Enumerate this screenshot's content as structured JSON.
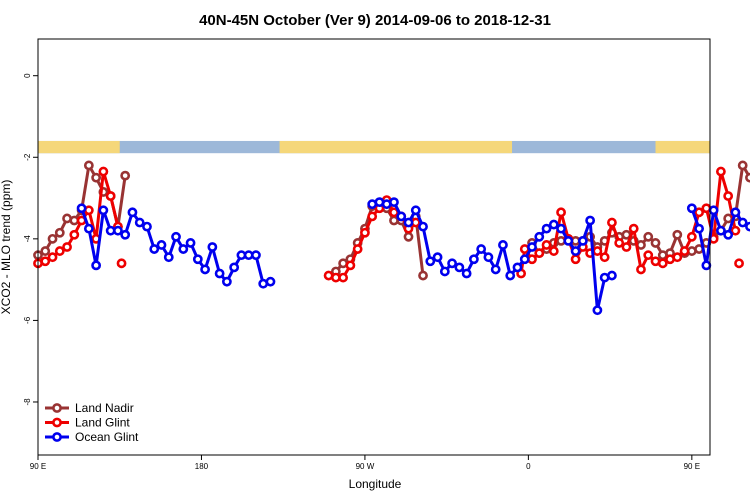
{
  "chart_data": {
    "type": "line",
    "title": "40N-45N October (Ver 9)   2014-09-06 to 2018-12-31",
    "xlabel": "Longitude",
    "ylabel": "XCO2 - MLO trend (ppm)",
    "xlim": [
      90,
      460
    ],
    "ylim": [
      -9.3,
      0.9
    ],
    "x_ticks": [
      {
        "value": 90,
        "label": "90 E"
      },
      {
        "value": 180,
        "label": "180"
      },
      {
        "value": 270,
        "label": "90 W"
      },
      {
        "value": 360,
        "label": "0"
      },
      {
        "value": 450,
        "label": "90 E"
      },
      {
        "value": 540,
        "label": "180"
      }
    ],
    "y_ticks": [
      {
        "value": 0,
        "label": "0"
      },
      {
        "value": -2,
        "label": "-2"
      },
      {
        "value": -4,
        "label": "-4"
      },
      {
        "value": -6,
        "label": "-6"
      },
      {
        "value": -8,
        "label": "-8"
      }
    ],
    "landmask": {
      "y_range": [
        -1.6,
        -1.9
      ],
      "ocean_color": "#9db8d9",
      "land_color": "#f5d77a",
      "land_segments": [
        [
          90,
          135
        ],
        [
          223,
          351
        ],
        [
          430,
          489
        ]
      ]
    },
    "legend_position": "bottom-left",
    "series": [
      {
        "name": "Land Nadir",
        "color": "#993333",
        "segments": [
          [
            [
              90,
              -4.4
            ],
            [
              94,
              -4.3
            ],
            [
              98,
              -4.0
            ],
            [
              102,
              -3.85
            ],
            [
              106,
              -3.5
            ],
            [
              110,
              -3.55
            ],
            [
              114,
              -3.3
            ],
            [
              118,
              -2.2
            ],
            [
              122,
              -2.5
            ],
            [
              126,
              -2.85
            ],
            [
              130,
              -2.95
            ],
            [
              134,
              -3.7
            ],
            [
              138,
              -2.45
            ]
          ],
          [
            [
              254,
              -4.8
            ],
            [
              258,
              -4.6
            ],
            [
              262,
              -4.5
            ],
            [
              266,
              -4.1
            ],
            [
              270,
              -3.75
            ],
            [
              274,
              -3.2
            ],
            [
              278,
              -3.15
            ],
            [
              282,
              -3.25
            ],
            [
              286,
              -3.55
            ],
            [
              290,
              -3.55
            ],
            [
              294,
              -3.95
            ],
            [
              298,
              -3.45
            ],
            [
              302,
              -4.9
            ]
          ],
          [
            [
              362,
              -4.1
            ],
            [
              366,
              -4.35
            ],
            [
              370,
              -4.25
            ],
            [
              374,
              -4.1
            ],
            [
              378,
              -4.05
            ],
            [
              382,
              -4.0
            ],
            [
              386,
              -4.05
            ],
            [
              390,
              -4.05
            ],
            [
              394,
              -3.95
            ],
            [
              398,
              -4.2
            ],
            [
              402,
              -4.05
            ],
            [
              406,
              -3.85
            ],
            [
              410,
              -3.95
            ],
            [
              414,
              -3.9
            ],
            [
              418,
              -4.05
            ],
            [
              422,
              -4.15
            ],
            [
              426,
              -3.95
            ],
            [
              430,
              -4.1
            ],
            [
              434,
              -4.4
            ],
            [
              438,
              -4.35
            ],
            [
              442,
              -3.9
            ],
            [
              446,
              -4.35
            ],
            [
              450,
              -4.3
            ],
            [
              454,
              -4.25
            ],
            [
              458,
              -4.1
            ],
            [
              462,
              -3.95
            ],
            [
              466,
              -3.8
            ],
            [
              470,
              -3.5
            ],
            [
              474,
              -3.45
            ],
            [
              478,
              -2.2
            ],
            [
              482,
              -2.5
            ],
            [
              486,
              -2.85
            ],
            [
              490,
              -2.95
            ],
            [
              494,
              -3.65
            ],
            [
              498,
              -2.45
            ]
          ]
        ]
      },
      {
        "name": "Land Glint",
        "color": "#ee0000",
        "segments": [
          [
            [
              90,
              -4.6
            ],
            [
              94,
              -4.55
            ],
            [
              98,
              -4.45
            ],
            [
              102,
              -4.3
            ],
            [
              106,
              -4.2
            ],
            [
              110,
              -3.9
            ],
            [
              114,
              -3.55
            ],
            [
              118,
              -3.3
            ],
            [
              122,
              -4.0
            ],
            [
              126,
              -2.35
            ],
            [
              130,
              -2.95
            ],
            [
              134,
              -3.7
            ]
          ],
          [
            [
              136,
              -4.6
            ]
          ],
          [
            [
              250,
              -4.9
            ],
            [
              254,
              -4.95
            ],
            [
              258,
              -4.95
            ],
            [
              262,
              -4.65
            ],
            [
              266,
              -4.25
            ],
            [
              270,
              -3.85
            ],
            [
              274,
              -3.45
            ],
            [
              278,
              -3.25
            ],
            [
              282,
              -3.05
            ],
            [
              286,
              -3.35
            ],
            [
              290,
              -3.45
            ],
            [
              294,
              -3.75
            ],
            [
              298,
              -3.6
            ]
          ],
          [
            [
              356,
              -4.85
            ],
            [
              358,
              -4.25
            ],
            [
              362,
              -4.5
            ],
            [
              366,
              -4.35
            ],
            [
              370,
              -4.15
            ],
            [
              374,
              -4.3
            ],
            [
              378,
              -3.35
            ],
            [
              382,
              -4.0
            ],
            [
              386,
              -4.5
            ],
            [
              390,
              -4.2
            ],
            [
              394,
              -4.35
            ],
            [
              398,
              -4.3
            ],
            [
              402,
              -4.45
            ],
            [
              406,
              -3.6
            ],
            [
              410,
              -4.1
            ],
            [
              414,
              -4.2
            ],
            [
              418,
              -3.75
            ],
            [
              422,
              -4.75
            ],
            [
              426,
              -4.4
            ],
            [
              430,
              -4.55
            ],
            [
              434,
              -4.6
            ],
            [
              438,
              -4.5
            ],
            [
              442,
              -4.45
            ],
            [
              446,
              -4.3
            ],
            [
              450,
              -3.95
            ],
            [
              454,
              -3.35
            ],
            [
              458,
              -3.25
            ],
            [
              462,
              -4.0
            ],
            [
              466,
              -2.35
            ],
            [
              470,
              -2.95
            ],
            [
              474,
              -3.8
            ]
          ],
          [
            [
              476,
              -4.6
            ]
          ]
        ]
      },
      {
        "name": "Ocean Glint",
        "color": "#0000ee",
        "segments": [
          [
            [
              114,
              -3.25
            ],
            [
              118,
              -3.75
            ],
            [
              122,
              -4.65
            ],
            [
              126,
              -3.3
            ],
            [
              130,
              -3.8
            ],
            [
              134,
              -3.8
            ],
            [
              138,
              -3.9
            ],
            [
              142,
              -3.35
            ],
            [
              146,
              -3.6
            ],
            [
              150,
              -3.7
            ],
            [
              154,
              -4.25
            ],
            [
              158,
              -4.15
            ],
            [
              162,
              -4.45
            ],
            [
              166,
              -3.95
            ],
            [
              170,
              -4.25
            ],
            [
              174,
              -4.1
            ],
            [
              178,
              -4.5
            ],
            [
              182,
              -4.75
            ],
            [
              186,
              -4.2
            ],
            [
              190,
              -4.85
            ],
            [
              194,
              -5.05
            ],
            [
              198,
              -4.7
            ],
            [
              202,
              -4.4
            ],
            [
              206,
              -4.4
            ],
            [
              210,
              -4.4
            ],
            [
              214,
              -5.1
            ],
            [
              218,
              -5.05
            ]
          ],
          [
            [
              274,
              -3.15
            ],
            [
              278,
              -3.1
            ],
            [
              282,
              -3.15
            ],
            [
              286,
              -3.1
            ],
            [
              290,
              -3.45
            ],
            [
              294,
              -3.6
            ],
            [
              298,
              -3.3
            ],
            [
              302,
              -3.7
            ],
            [
              306,
              -4.55
            ],
            [
              310,
              -4.45
            ],
            [
              314,
              -4.8
            ],
            [
              318,
              -4.6
            ],
            [
              322,
              -4.7
            ],
            [
              326,
              -4.85
            ],
            [
              330,
              -4.5
            ],
            [
              334,
              -4.25
            ],
            [
              338,
              -4.45
            ],
            [
              342,
              -4.75
            ],
            [
              346,
              -4.15
            ],
            [
              350,
              -4.9
            ],
            [
              354,
              -4.7
            ],
            [
              358,
              -4.5
            ],
            [
              362,
              -4.2
            ],
            [
              366,
              -3.95
            ],
            [
              370,
              -3.75
            ],
            [
              374,
              -3.65
            ],
            [
              378,
              -3.75
            ],
            [
              382,
              -4.05
            ],
            [
              386,
              -4.3
            ],
            [
              390,
              -4.05
            ],
            [
              394,
              -3.55
            ],
            [
              398,
              -5.75
            ],
            [
              402,
              -4.95
            ],
            [
              406,
              -4.9
            ]
          ],
          [
            [
              450,
              -3.25
            ],
            [
              454,
              -3.75
            ],
            [
              458,
              -4.65
            ],
            [
              462,
              -3.3
            ],
            [
              466,
              -3.8
            ],
            [
              470,
              -3.9
            ],
            [
              474,
              -3.35
            ],
            [
              478,
              -3.6
            ],
            [
              482,
              -3.7
            ],
            [
              486,
              -4.25
            ],
            [
              490,
              -4.15
            ],
            [
              494,
              -4.45
            ],
            [
              498,
              -3.95
            ]
          ]
        ]
      }
    ]
  }
}
